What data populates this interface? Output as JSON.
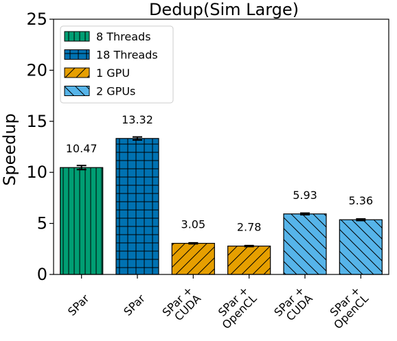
{
  "chart_data": {
    "type": "bar",
    "title": "Dedup(Sim Large)",
    "xlabel": "",
    "ylabel": "Speedup",
    "ylim": [
      0,
      25
    ],
    "yticks": [
      0,
      5,
      10,
      15,
      20,
      25
    ],
    "grid": false,
    "legend_position": "top-left",
    "bars": [
      {
        "label": "SPar",
        "value": 10.47,
        "value_label": "10.47",
        "err": 0.2,
        "series": "8 Threads"
      },
      {
        "label": "SPar",
        "value": 13.32,
        "value_label": "13.32",
        "err": 0.15,
        "series": "18 Threads"
      },
      {
        "label": "SPar +\nCUDA",
        "value": 3.05,
        "value_label": "3.05",
        "err": 0.05,
        "series": "1 GPU"
      },
      {
        "label": "SPar +\nOpenCL",
        "value": 2.78,
        "value_label": "2.78",
        "err": 0.05,
        "series": "1 GPU"
      },
      {
        "label": "SPar +\nCUDA",
        "value": 5.93,
        "value_label": "5.93",
        "err": 0.08,
        "series": "2 GPUs"
      },
      {
        "label": "SPar +\nOpenCL",
        "value": 5.36,
        "value_label": "5.36",
        "err": 0.08,
        "series": "2 GPUs"
      }
    ],
    "series": [
      {
        "name": "8 Threads",
        "color": "#009e73",
        "hatch": "vertical"
      },
      {
        "name": "18 Threads",
        "color": "#0072b2",
        "hatch": "grid"
      },
      {
        "name": "1 GPU",
        "color": "#e69f00",
        "hatch": "forward-diagonal"
      },
      {
        "name": "2 GPUs",
        "color": "#56b4e9",
        "hatch": "back-diagonal"
      }
    ]
  }
}
